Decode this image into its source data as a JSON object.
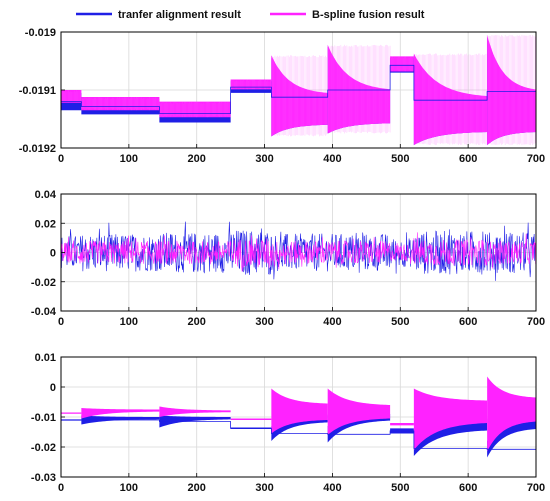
{
  "chart_data": [
    {
      "type": "line",
      "xlim": [
        0,
        700
      ],
      "ylim": [
        -0.0192,
        -0.019
      ],
      "x_ticks": [
        "0",
        "100",
        "200",
        "300",
        "400",
        "500",
        "600",
        "700"
      ],
      "y_ticks": [
        "-0.019",
        "-0.0191",
        "-0.0192"
      ],
      "y_tick_values": [
        -0.019,
        -0.0191,
        -0.0192
      ],
      "grid": true,
      "legend": {
        "placement": "top",
        "entries": [
          "tranfer alignment result",
          "B-spline fusion result"
        ]
      },
      "segments": [
        {
          "start": 0,
          "end": 30,
          "blue_base": -0.019125,
          "blue_top": -0.019105,
          "blue_bottom": -0.019135,
          "magenta_top": -0.0191,
          "magenta_bottom": -0.019122,
          "shape": "flat"
        },
        {
          "start": 30,
          "end": 145,
          "blue_base": -0.019137,
          "blue_top": -0.019115,
          "blue_bottom": -0.019142,
          "magenta_top": -0.019112,
          "magenta_bottom": -0.019135,
          "shape": "flat"
        },
        {
          "start": 145,
          "end": 250,
          "blue_base": -0.01915,
          "blue_top": -0.019125,
          "blue_bottom": -0.019156,
          "magenta_top": -0.01912,
          "magenta_bottom": -0.019147,
          "shape": "flat"
        },
        {
          "start": 250,
          "end": 310,
          "blue_base": -0.0191,
          "blue_top": -0.019085,
          "blue_bottom": -0.019105,
          "magenta_top": -0.019082,
          "magenta_bottom": -0.019099,
          "shape": "flat"
        },
        {
          "start": 310,
          "end": 393,
          "blue_base": -0.01914,
          "blue_top": -0.019045,
          "blue_bottom": -0.01918,
          "magenta_top": -0.01904,
          "magenta_bottom": -0.01918,
          "shape": "decay"
        },
        {
          "start": 393,
          "end": 485,
          "blue_base": -0.01914,
          "blue_top": -0.019025,
          "blue_bottom": -0.019175,
          "magenta_top": -0.019022,
          "magenta_bottom": -0.019175,
          "shape": "decay"
        },
        {
          "start": 485,
          "end": 520,
          "blue_base": -0.01906,
          "blue_top": -0.019045,
          "blue_bottom": -0.01907,
          "magenta_top": -0.019042,
          "magenta_bottom": -0.019068,
          "shape": "flat"
        },
        {
          "start": 520,
          "end": 628,
          "blue_base": -0.01915,
          "blue_top": -0.01904,
          "blue_bottom": -0.019195,
          "magenta_top": -0.019037,
          "magenta_bottom": -0.019195,
          "shape": "decay"
        },
        {
          "start": 628,
          "end": 700,
          "blue_base": -0.01915,
          "blue_top": -0.01901,
          "blue_bottom": -0.019195,
          "magenta_top": -0.019005,
          "magenta_bottom": -0.019195,
          "shape": "decay"
        }
      ]
    },
    {
      "type": "line",
      "xlim": [
        0,
        700
      ],
      "ylim": [
        -0.04,
        0.04
      ],
      "x_ticks": [
        "0",
        "100",
        "200",
        "300",
        "400",
        "500",
        "600",
        "700"
      ],
      "y_ticks": [
        "0.04",
        "0.02",
        "0",
        "-0.02",
        "-0.04"
      ],
      "y_tick_values": [
        0.04,
        0.02,
        0,
        -0.02,
        -0.04
      ],
      "grid": true,
      "segments": [
        {
          "start": 0,
          "end": 30,
          "blue_amp": 0.012,
          "magenta_amp": 0.007
        },
        {
          "start": 30,
          "end": 145,
          "blue_amp": 0.013,
          "magenta_amp": 0.008
        },
        {
          "start": 145,
          "end": 250,
          "blue_amp": 0.014,
          "magenta_amp": 0.008
        },
        {
          "start": 250,
          "end": 310,
          "blue_amp": 0.016,
          "magenta_amp": 0.01
        },
        {
          "start": 310,
          "end": 393,
          "blue_amp": 0.013,
          "magenta_amp": 0.008
        },
        {
          "start": 393,
          "end": 485,
          "blue_amp": 0.013,
          "magenta_amp": 0.008
        },
        {
          "start": 485,
          "end": 520,
          "blue_amp": 0.01,
          "magenta_amp": 0.006
        },
        {
          "start": 520,
          "end": 628,
          "blue_amp": 0.015,
          "magenta_amp": 0.009
        },
        {
          "start": 628,
          "end": 700,
          "blue_amp": 0.014,
          "magenta_amp": 0.008
        }
      ]
    },
    {
      "type": "line",
      "xlim": [
        0,
        700
      ],
      "ylim": [
        -0.03,
        0.01
      ],
      "x_ticks": [
        "0",
        "100",
        "200",
        "300",
        "400",
        "500",
        "600",
        "700"
      ],
      "y_ticks": [
        "0.01",
        "0",
        "-0.01",
        "-0.02",
        "-0.03"
      ],
      "y_tick_values": [
        0.01,
        0,
        -0.01,
        -0.02,
        -0.03
      ],
      "grid": true,
      "segments": [
        {
          "start": 0,
          "end": 30,
          "blue_top": -0.0108,
          "blue_bottom": -0.0112,
          "magenta_top": -0.0085,
          "magenta_bottom": -0.0089,
          "shape": "flat"
        },
        {
          "start": 30,
          "end": 145,
          "blue_top": -0.0095,
          "blue_bottom": -0.0125,
          "magenta_top": -0.007,
          "magenta_bottom": -0.0105,
          "shape": "converge",
          "end_blue_top": -0.01,
          "end_blue_bottom": -0.0108,
          "end_magenta_top": -0.0075,
          "end_magenta_bottom": -0.0082
        },
        {
          "start": 145,
          "end": 250,
          "blue_top": -0.0095,
          "blue_bottom": -0.0135,
          "magenta_top": -0.0065,
          "magenta_bottom": -0.01,
          "shape": "converge",
          "end_blue_top": -0.01,
          "end_blue_bottom": -0.0108,
          "end_magenta_top": -0.0078,
          "end_magenta_bottom": -0.0084
        },
        {
          "start": 250,
          "end": 310,
          "blue_top": -0.0135,
          "blue_bottom": -0.014,
          "magenta_top": -0.0105,
          "magenta_bottom": -0.011,
          "shape": "flat"
        },
        {
          "start": 310,
          "end": 393,
          "blue_top": -0.013,
          "blue_bottom": -0.018,
          "magenta_top": -0.0005,
          "magenta_bottom": -0.0155,
          "shape": "converge",
          "end_blue_top": -0.0092,
          "end_blue_bottom": -0.0118,
          "end_magenta_top": -0.0055,
          "end_magenta_bottom": -0.011
        },
        {
          "start": 393,
          "end": 485,
          "blue_top": -0.013,
          "blue_bottom": -0.0185,
          "magenta_top": -0.0005,
          "magenta_bottom": -0.016,
          "shape": "converge",
          "end_blue_top": -0.009,
          "end_blue_bottom": -0.0112,
          "end_magenta_top": -0.006,
          "end_magenta_bottom": -0.0105
        },
        {
          "start": 485,
          "end": 520,
          "blue_top": -0.0138,
          "blue_bottom": -0.0155,
          "magenta_top": -0.012,
          "magenta_bottom": -0.0128,
          "shape": "flat"
        },
        {
          "start": 520,
          "end": 628,
          "blue_top": -0.018,
          "blue_bottom": -0.023,
          "magenta_top": -0.0005,
          "magenta_bottom": -0.021,
          "shape": "converge",
          "end_blue_top": -0.0105,
          "end_blue_bottom": -0.0145,
          "end_magenta_top": -0.0045,
          "end_magenta_bottom": -0.012
        },
        {
          "start": 628,
          "end": 700,
          "blue_top": -0.018,
          "blue_bottom": -0.0235,
          "magenta_top": 0.0035,
          "magenta_bottom": -0.0215,
          "shape": "converge",
          "end_blue_top": -0.011,
          "end_blue_bottom": -0.014,
          "end_magenta_top": -0.0035,
          "end_magenta_bottom": -0.0115
        }
      ]
    }
  ],
  "colors": {
    "blue": "#1f1fe6",
    "magenta": "#ff22ff",
    "grid": "#d8d8d8",
    "axis": "#000000"
  }
}
